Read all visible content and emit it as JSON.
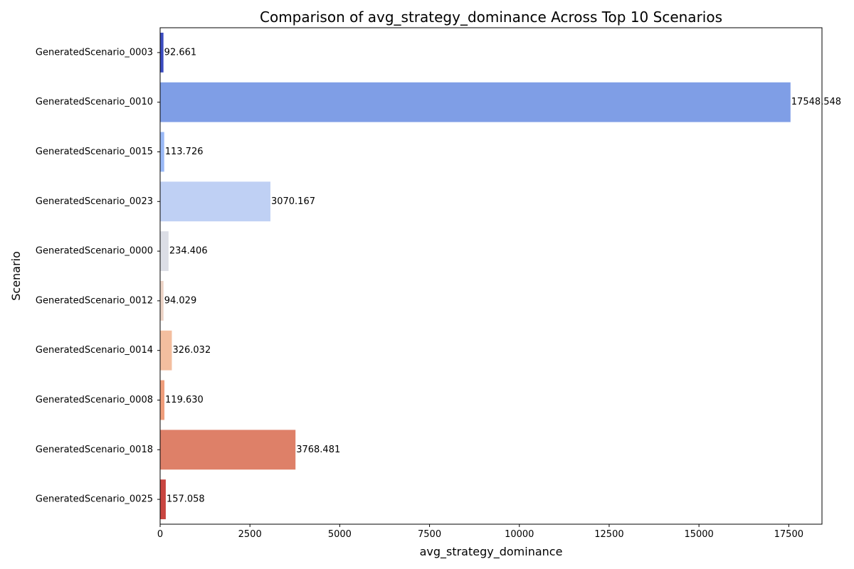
{
  "chart_data": {
    "type": "bar",
    "orientation": "horizontal",
    "title": "Comparison of avg_strategy_dominance Across Top 10 Scenarios",
    "xlabel": "avg_strategy_dominance",
    "ylabel": "Scenario",
    "xlim": [
      0,
      18424.5
    ],
    "xticks": [
      0,
      2500,
      5000,
      7500,
      10000,
      12500,
      15000,
      17500
    ],
    "grid": false,
    "categories": [
      "GeneratedScenario_0003",
      "GeneratedScenario_0010",
      "GeneratedScenario_0015",
      "GeneratedScenario_0023",
      "GeneratedScenario_0000",
      "GeneratedScenario_0012",
      "GeneratedScenario_0014",
      "GeneratedScenario_0008",
      "GeneratedScenario_0018",
      "GeneratedScenario_0025"
    ],
    "values": [
      92.661,
      17548.548,
      113.726,
      3070.167,
      234.406,
      94.029,
      326.032,
      119.63,
      3768.481,
      157.058
    ],
    "data_labels": [
      "92.661",
      "17548.548",
      "113.726",
      "3070.167",
      "234.406",
      "94.029",
      "326.032",
      "119.630",
      "3768.481",
      "157.058"
    ],
    "colors": [
      "#3b4cc0",
      "#7f9ee6",
      "#99b9f7",
      "#bfd0f4",
      "#dcdee6",
      "#ecd3c5",
      "#f3be9f",
      "#f09e7b",
      "#de8068",
      "#c94540"
    ]
  }
}
